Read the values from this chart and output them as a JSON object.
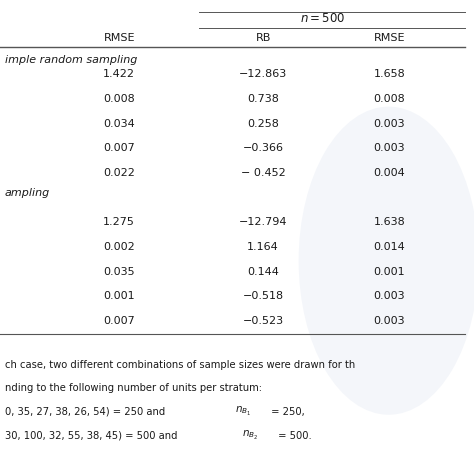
{
  "header_n500": "$n = 500$",
  "col_rmse_left": "RMSE",
  "col_rb": "RB",
  "col_rmse_right": "RMSE",
  "section1_label": "imple random sampling",
  "section2_label": "ampling",
  "rows_s1": [
    [
      "1.422",
      "−12.863",
      "1.658"
    ],
    [
      "0.008",
      "0.738",
      "0.008"
    ],
    [
      "0.034",
      "0.258",
      "0.003"
    ],
    [
      "0.007",
      "−0.366",
      "0.003"
    ],
    [
      "0.022",
      "− 0.452",
      "0.004"
    ]
  ],
  "rows_s2": [
    [
      "1.275",
      "−12.794",
      "1.638"
    ],
    [
      "0.002",
      "1.164",
      "0.014"
    ],
    [
      "0.035",
      "0.144",
      "0.001"
    ],
    [
      "0.001",
      "−0.518",
      "0.003"
    ],
    [
      "0.007",
      "−0.523",
      "0.003"
    ]
  ],
  "fn1": "ch case, two different combinations of sample sizes were drawn for th",
  "fn2": "nding to the following number of units per stratum:",
  "fn3a": "0, 35, 27, 38, 26, 54) = 250 and ",
  "fn3b": " = 250,",
  "fn4a": "30, 100, 32, 55, 38, 45) = 500 and ",
  "fn4b": " = 500.",
  "bg_color": "#ffffff",
  "text_color": "#1a1a1a",
  "line_color": "#555555",
  "watermark_color": "#c8d4e8"
}
